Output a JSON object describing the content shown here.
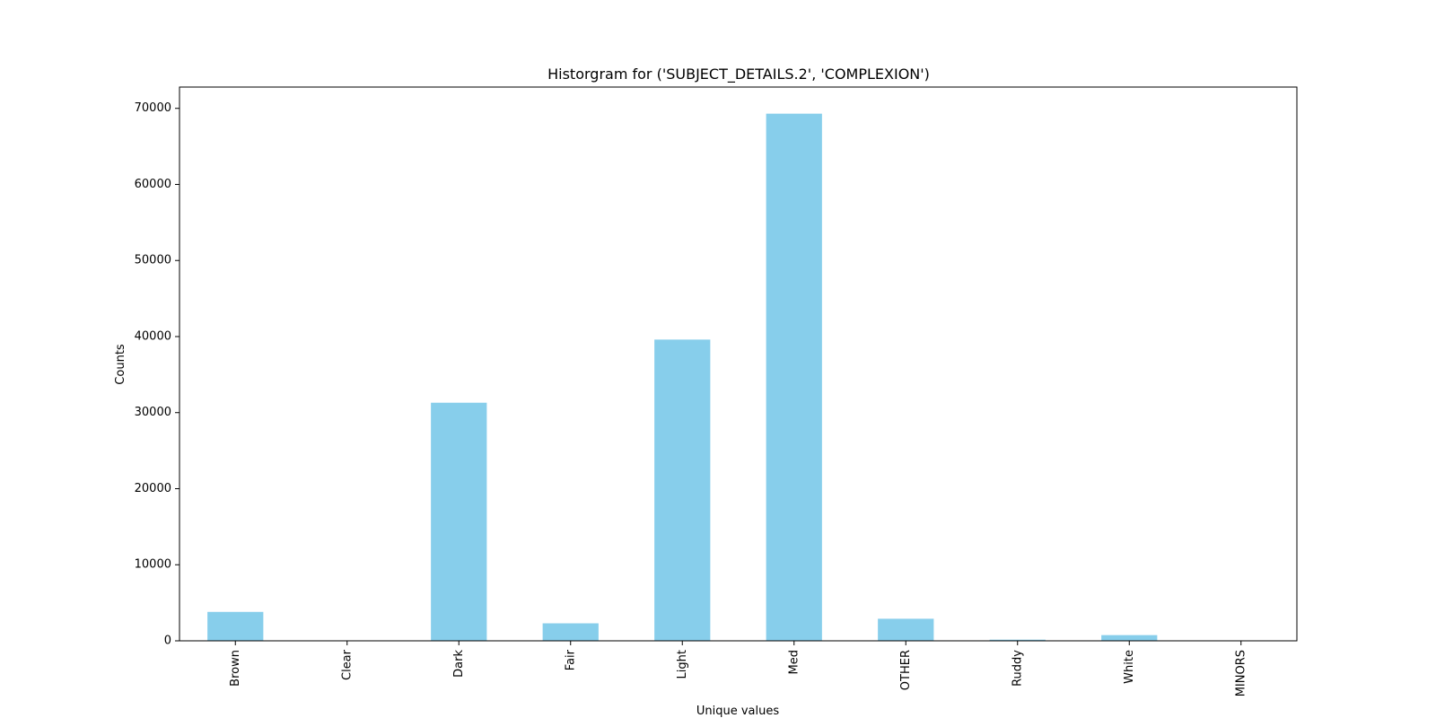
{
  "chart_data": {
    "type": "bar",
    "title": "Historgram for ('SUBJECT_DETAILS.2', 'COMPLEXION')",
    "xlabel": "Unique values",
    "ylabel": "Counts",
    "categories": [
      "Brown",
      "Clear",
      "Dark",
      "Fair",
      "Light",
      "Med",
      "OTHER",
      "Ruddy",
      "White",
      "MINORS"
    ],
    "values": [
      3800,
      10,
      31300,
      2300,
      39600,
      69300,
      2900,
      150,
      750,
      10
    ],
    "ylim": [
      0,
      72800
    ],
    "yticks": [
      0,
      10000,
      20000,
      30000,
      40000,
      50000,
      60000,
      70000
    ],
    "grid": false,
    "bar_color": "#87CEEB"
  }
}
